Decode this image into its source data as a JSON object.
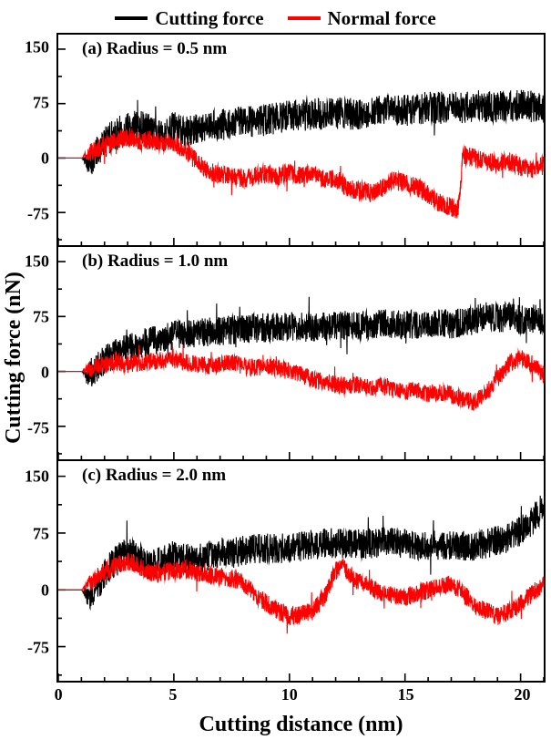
{
  "legend": {
    "items": [
      {
        "label": "Cutting force",
        "color": "#000000"
      },
      {
        "label": "Normal force",
        "color": "#fe0000"
      }
    ]
  },
  "y_axis": {
    "label": "Cutting force (nN)",
    "tick_labels": [
      "150",
      "75",
      "0",
      "-75"
    ],
    "ticks": [
      150,
      75,
      0,
      -75
    ],
    "minor_ticks": [
      112.5,
      37.5,
      -37.5,
      -112.5
    ]
  },
  "x_axis": {
    "label": "Cutting distance (nm)",
    "tick_labels": [
      "0",
      "5",
      "10",
      "15",
      "20"
    ],
    "ticks": [
      0,
      5,
      10,
      15,
      20
    ],
    "range": [
      0,
      21
    ],
    "minor_step": 1
  },
  "chart_data": [
    {
      "type": "line",
      "title": "(a) Radius = 0.5 nm",
      "xlabel": "Cutting distance (nm)",
      "ylabel": "Cutting force (nN)",
      "x_range": [
        0,
        21
      ],
      "ylim": [
        -120,
        170
      ],
      "grid": false,
      "series": [
        {
          "name": "Cutting force",
          "color": "#000000",
          "noise": 22,
          "points": [
            [
              0,
              0
            ],
            [
              1,
              0
            ],
            [
              1.3,
              -8
            ],
            [
              1.8,
              15
            ],
            [
              2.5,
              35
            ],
            [
              3,
              42
            ],
            [
              3.5,
              45
            ],
            [
              4,
              38
            ],
            [
              4.5,
              30
            ],
            [
              5,
              42
            ],
            [
              5.5,
              35
            ],
            [
              6,
              40
            ],
            [
              7,
              45
            ],
            [
              8,
              50
            ],
            [
              9,
              52
            ],
            [
              10,
              58
            ],
            [
              11,
              60
            ],
            [
              12,
              62
            ],
            [
              13,
              60
            ],
            [
              14,
              68
            ],
            [
              15,
              65
            ],
            [
              16,
              70
            ],
            [
              17,
              68
            ],
            [
              18,
              72
            ],
            [
              19,
              70
            ],
            [
              20,
              72
            ],
            [
              21,
              70
            ]
          ]
        },
        {
          "name": "Normal force",
          "color": "#fe0000",
          "noise": 13,
          "points": [
            [
              0,
              0
            ],
            [
              1,
              0
            ],
            [
              1.5,
              10
            ],
            [
              2,
              18
            ],
            [
              2.5,
              25
            ],
            [
              3,
              28
            ],
            [
              3.5,
              22
            ],
            [
              4,
              25
            ],
            [
              4.5,
              20
            ],
            [
              5,
              22
            ],
            [
              5.5,
              10
            ],
            [
              6,
              -5
            ],
            [
              6.5,
              -18
            ],
            [
              7,
              -22
            ],
            [
              7.5,
              -25
            ],
            [
              8,
              -28
            ],
            [
              8.5,
              -25
            ],
            [
              9,
              -22
            ],
            [
              9.5,
              -25
            ],
            [
              10,
              -20
            ],
            [
              10.5,
              -25
            ],
            [
              11,
              -22
            ],
            [
              11.5,
              -30
            ],
            [
              12,
              -28
            ],
            [
              12.5,
              -42
            ],
            [
              13,
              -45
            ],
            [
              13.5,
              -48
            ],
            [
              14,
              -42
            ],
            [
              14.5,
              -30
            ],
            [
              15,
              -35
            ],
            [
              15.5,
              -40
            ],
            [
              16,
              -50
            ],
            [
              16.5,
              -62
            ],
            [
              17,
              -68
            ],
            [
              17.3,
              -72
            ],
            [
              17.5,
              5
            ],
            [
              18,
              0
            ],
            [
              18.5,
              -5
            ],
            [
              19,
              -8
            ],
            [
              19.5,
              -5
            ],
            [
              20,
              -12
            ],
            [
              20.5,
              -15
            ],
            [
              21,
              -10
            ]
          ]
        }
      ]
    },
    {
      "type": "line",
      "title": "(b) Radius = 1.0 nm",
      "xlabel": "Cutting distance (nm)",
      "ylabel": "Cutting force (nN)",
      "x_range": [
        0,
        21
      ],
      "ylim": [
        -120,
        170
      ],
      "grid": false,
      "series": [
        {
          "name": "Cutting force",
          "color": "#000000",
          "noise": 20,
          "points": [
            [
              0,
              0
            ],
            [
              1,
              0
            ],
            [
              1.3,
              -5
            ],
            [
              2,
              15
            ],
            [
              2.5,
              25
            ],
            [
              3,
              32
            ],
            [
              3.5,
              38
            ],
            [
              4,
              42
            ],
            [
              4.5,
              45
            ],
            [
              5,
              50
            ],
            [
              6,
              52
            ],
            [
              7,
              55
            ],
            [
              8,
              58
            ],
            [
              9,
              60
            ],
            [
              10,
              62
            ],
            [
              11,
              60
            ],
            [
              12,
              63
            ],
            [
              13,
              62
            ],
            [
              14,
              65
            ],
            [
              15,
              63
            ],
            [
              16,
              66
            ],
            [
              17,
              65
            ],
            [
              18,
              70
            ],
            [
              18.5,
              78
            ],
            [
              19,
              72
            ],
            [
              19.5,
              75
            ],
            [
              20,
              70
            ],
            [
              20.5,
              72
            ],
            [
              21,
              68
            ]
          ]
        },
        {
          "name": "Normal force",
          "color": "#fe0000",
          "noise": 12,
          "points": [
            [
              0,
              0
            ],
            [
              1,
              0
            ],
            [
              1.5,
              5
            ],
            [
              2,
              10
            ],
            [
              2.5,
              12
            ],
            [
              3,
              10
            ],
            [
              3.5,
              12
            ],
            [
              4,
              14
            ],
            [
              4.5,
              15
            ],
            [
              5,
              16
            ],
            [
              5.5,
              12
            ],
            [
              6,
              10
            ],
            [
              6.5,
              8
            ],
            [
              7,
              10
            ],
            [
              7.5,
              12
            ],
            [
              8,
              8
            ],
            [
              8.5,
              5
            ],
            [
              9,
              8
            ],
            [
              9.5,
              5
            ],
            [
              10,
              0
            ],
            [
              10.5,
              -5
            ],
            [
              11,
              -10
            ],
            [
              11.5,
              -15
            ],
            [
              12,
              -18
            ],
            [
              12.5,
              -20
            ],
            [
              13,
              -18
            ],
            [
              13.5,
              -22
            ],
            [
              14,
              -20
            ],
            [
              14.5,
              -25
            ],
            [
              15,
              -28
            ],
            [
              15.5,
              -25
            ],
            [
              16,
              -30
            ],
            [
              16.5,
              -28
            ],
            [
              17,
              -32
            ],
            [
              17.5,
              -38
            ],
            [
              18,
              -42
            ],
            [
              18.5,
              -30
            ],
            [
              19,
              -10
            ],
            [
              19.5,
              10
            ],
            [
              20,
              18
            ],
            [
              20.5,
              10
            ],
            [
              21,
              -5
            ]
          ]
        }
      ]
    },
    {
      "type": "line",
      "title": "(c) Radius = 2.0 nm",
      "xlabel": "Cutting distance (nm)",
      "ylabel": "Cutting force (nN)",
      "x_range": [
        0,
        21
      ],
      "ylim": [
        -120,
        170
      ],
      "grid": false,
      "series": [
        {
          "name": "Cutting force",
          "color": "#000000",
          "noise": 20,
          "points": [
            [
              0,
              0
            ],
            [
              1,
              0
            ],
            [
              1.3,
              -10
            ],
            [
              1.8,
              10
            ],
            [
              2.2,
              30
            ],
            [
              2.7,
              45
            ],
            [
              3,
              50
            ],
            [
              3.5,
              42
            ],
            [
              4,
              32
            ],
            [
              4.5,
              38
            ],
            [
              5,
              45
            ],
            [
              5.5,
              42
            ],
            [
              6,
              40
            ],
            [
              6.5,
              45
            ],
            [
              7,
              50
            ],
            [
              7.5,
              48
            ],
            [
              8,
              52
            ],
            [
              9,
              55
            ],
            [
              10,
              55
            ],
            [
              11,
              60
            ],
            [
              12,
              62
            ],
            [
              13,
              60
            ],
            [
              14,
              63
            ],
            [
              15,
              62
            ],
            [
              16,
              58
            ],
            [
              17,
              60
            ],
            [
              18,
              58
            ],
            [
              19,
              65
            ],
            [
              19.5,
              70
            ],
            [
              20,
              78
            ],
            [
              20.5,
              92
            ],
            [
              21,
              110
            ]
          ]
        },
        {
          "name": "Normal force",
          "color": "#fe0000",
          "noise": 12,
          "points": [
            [
              0,
              0
            ],
            [
              1,
              0
            ],
            [
              1.5,
              12
            ],
            [
              2,
              25
            ],
            [
              2.5,
              32
            ],
            [
              3,
              38
            ],
            [
              3.3,
              35
            ],
            [
              3.8,
              25
            ],
            [
              4.2,
              22
            ],
            [
              5,
              25
            ],
            [
              5.5,
              28
            ],
            [
              6,
              22
            ],
            [
              6.5,
              20
            ],
            [
              7,
              18
            ],
            [
              7.5,
              15
            ],
            [
              8,
              8
            ],
            [
              8.5,
              -5
            ],
            [
              9,
              -18
            ],
            [
              9.5,
              -28
            ],
            [
              10,
              -35
            ],
            [
              10.5,
              -32
            ],
            [
              11,
              -28
            ],
            [
              11.5,
              -10
            ],
            [
              12,
              25
            ],
            [
              12.3,
              30
            ],
            [
              12.8,
              15
            ],
            [
              13,
              10
            ],
            [
              13.5,
              5
            ],
            [
              14,
              -5
            ],
            [
              14.5,
              -8
            ],
            [
              15,
              -10
            ],
            [
              15.5,
              -5
            ],
            [
              16,
              0
            ],
            [
              16.5,
              5
            ],
            [
              17,
              8
            ],
            [
              17.5,
              -5
            ],
            [
              18,
              -20
            ],
            [
              18.5,
              -28
            ],
            [
              19,
              -35
            ],
            [
              19.5,
              -28
            ],
            [
              20,
              -18
            ],
            [
              20.5,
              -5
            ],
            [
              21,
              8
            ]
          ]
        }
      ]
    }
  ]
}
